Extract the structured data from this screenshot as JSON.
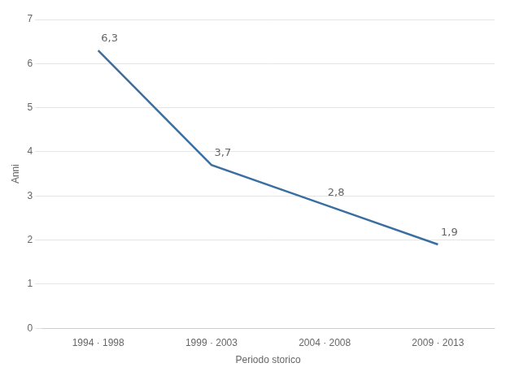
{
  "chart_data": {
    "type": "line",
    "xlabel": "Periodo storico",
    "ylabel": "Anni",
    "categories": [
      "1994 · 1998",
      "1999 · 2003",
      "2004 · 2008",
      "2009 · 2013"
    ],
    "values": [
      6.3,
      3.7,
      2.8,
      1.9
    ],
    "value_labels": [
      "6,3",
      "3,7",
      "2,8",
      "1,9"
    ],
    "data_labels": true,
    "color": "#3a6f9f",
    "ylim": [
      0,
      7
    ],
    "yticks": [
      0,
      1,
      2,
      3,
      4,
      5,
      6,
      7
    ],
    "grid": "y"
  }
}
